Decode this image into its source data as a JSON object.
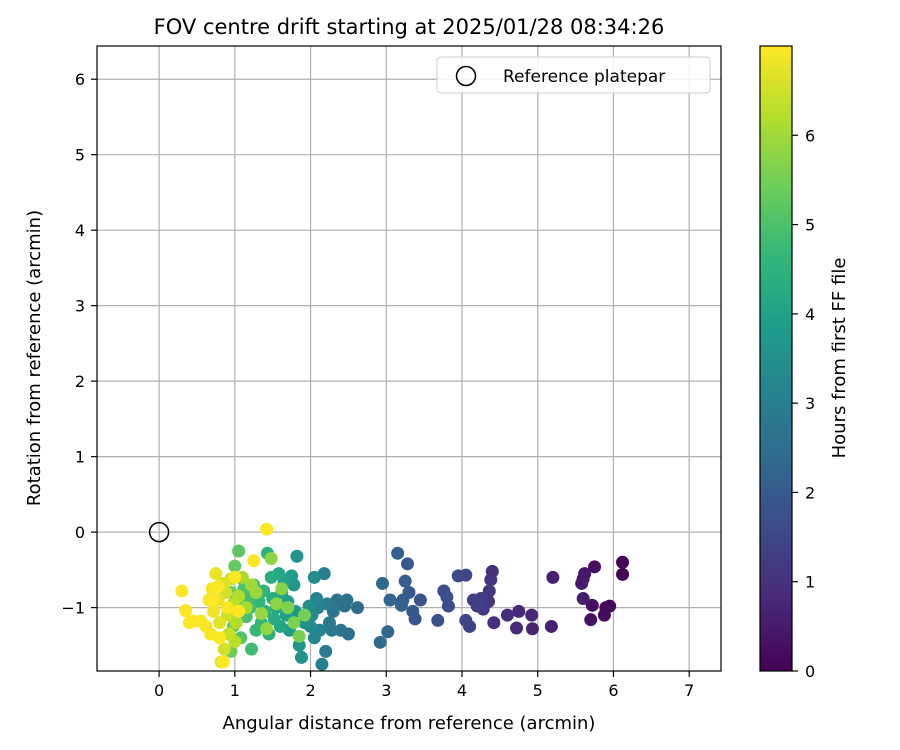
{
  "chart_data": {
    "type": "scatter",
    "title": "FOV centre drift starting at 2025/01/28 08:34:26",
    "xlabel": "Angular distance from reference (arcmin)",
    "ylabel": "Rotation from reference (arcmin)",
    "xlim": [
      -0.82,
      7.42
    ],
    "ylim": [
      -1.84,
      6.44
    ],
    "xticks": [
      0,
      1,
      2,
      3,
      4,
      5,
      6,
      7
    ],
    "yticks": [
      -1,
      0,
      1,
      2,
      3,
      4,
      5,
      6
    ],
    "xtick_labels": [
      "0",
      "1",
      "2",
      "3",
      "4",
      "5",
      "6",
      "7"
    ],
    "ytick_labels": [
      "−1",
      "0",
      "1",
      "2",
      "3",
      "4",
      "5",
      "6"
    ],
    "grid": true,
    "legend": {
      "location": "upper-right",
      "entries": [
        "Reference platepar"
      ]
    },
    "reference": {
      "x": 0,
      "y": 0,
      "marker": "open-circle"
    },
    "colorbar": {
      "label": "Hours from first FF file",
      "range": [
        0,
        7
      ],
      "ticks": [
        0,
        1,
        2,
        3,
        4,
        5,
        6
      ],
      "tick_labels": [
        "0",
        "1",
        "2",
        "3",
        "4",
        "5",
        "6"
      ],
      "colormap": "viridis"
    },
    "colormap_stops": [
      "#440154",
      "#482878",
      "#3e4989",
      "#31688e",
      "#26828e",
      "#1f9e89",
      "#35b779",
      "#6ece58",
      "#b5de2b",
      "#fde725"
    ],
    "points": [
      [
        6.12,
        -0.4,
        0.02
      ],
      [
        6.12,
        -0.56,
        0.05
      ],
      [
        5.95,
        -0.98,
        0.1
      ],
      [
        5.9,
        -1.0,
        0.15
      ],
      [
        5.88,
        -1.1,
        0.2
      ],
      [
        5.75,
        -0.46,
        0.25
      ],
      [
        5.72,
        -0.97,
        0.3
      ],
      [
        5.7,
        -1.16,
        0.35
      ],
      [
        5.62,
        -0.55,
        0.4
      ],
      [
        5.6,
        -0.62,
        0.45
      ],
      [
        5.58,
        -0.68,
        0.5
      ],
      [
        5.6,
        -0.88,
        0.55
      ],
      [
        5.2,
        -0.6,
        0.6
      ],
      [
        5.18,
        -1.25,
        0.65
      ],
      [
        4.93,
        -1.28,
        0.7
      ],
      [
        4.92,
        -1.1,
        0.75
      ],
      [
        4.75,
        -1.05,
        0.8
      ],
      [
        4.72,
        -1.27,
        0.85
      ],
      [
        4.6,
        -1.1,
        0.9
      ],
      [
        4.42,
        -1.2,
        0.95
      ],
      [
        4.4,
        -0.52,
        1.0
      ],
      [
        4.38,
        -0.63,
        1.05
      ],
      [
        4.36,
        -0.78,
        1.1
      ],
      [
        4.35,
        -0.92,
        1.15
      ],
      [
        4.28,
        -1.02,
        1.2
      ],
      [
        4.25,
        -0.88,
        1.25
      ],
      [
        4.2,
        -0.98,
        1.3
      ],
      [
        4.15,
        -0.9,
        1.35
      ],
      [
        4.1,
        -1.25,
        1.4
      ],
      [
        4.05,
        -1.17,
        1.45
      ],
      [
        4.05,
        -0.57,
        1.5
      ],
      [
        3.95,
        -0.58,
        1.55
      ],
      [
        3.82,
        -0.98,
        1.6
      ],
      [
        3.76,
        -0.78,
        1.65
      ],
      [
        3.8,
        -0.86,
        1.7
      ],
      [
        3.68,
        -1.17,
        1.75
      ],
      [
        3.45,
        -0.9,
        1.8
      ],
      [
        3.38,
        -1.15,
        1.85
      ],
      [
        3.35,
        -1.05,
        1.9
      ],
      [
        3.3,
        -0.8,
        1.95
      ],
      [
        3.28,
        -0.42,
        2.0
      ],
      [
        3.25,
        -0.65,
        2.05
      ],
      [
        3.22,
        -0.9,
        2.1
      ],
      [
        3.15,
        -0.28,
        2.15
      ],
      [
        3.2,
        -0.97,
        2.2
      ],
      [
        3.05,
        -0.9,
        2.25
      ],
      [
        3.02,
        -1.32,
        2.3
      ],
      [
        2.95,
        -0.68,
        2.35
      ],
      [
        2.92,
        -1.46,
        2.4
      ],
      [
        2.62,
        -1.0,
        2.45
      ],
      [
        2.5,
        -1.35,
        2.5
      ],
      [
        2.45,
        -0.98,
        2.55
      ],
      [
        2.48,
        -0.9,
        2.6
      ],
      [
        2.4,
        -1.3,
        2.65
      ],
      [
        2.35,
        -0.9,
        2.7
      ],
      [
        2.3,
        -1.05,
        2.75
      ],
      [
        2.28,
        -1.3,
        2.8
      ],
      [
        2.25,
        -1.2,
        2.85
      ],
      [
        2.22,
        -0.95,
        2.9
      ],
      [
        2.2,
        -1.58,
        2.95
      ],
      [
        2.18,
        -0.55,
        3.0
      ],
      [
        2.15,
        -1.75,
        3.05
      ],
      [
        2.12,
        -1.3,
        3.1
      ],
      [
        2.1,
        -1.0,
        3.15
      ],
      [
        2.05,
        -1.4,
        3.2
      ],
      [
        2.08,
        -0.88,
        3.25
      ],
      [
        2.02,
        -1.1,
        3.3
      ],
      [
        2.0,
        -1.25,
        3.35
      ],
      [
        2.05,
        -0.6,
        3.4
      ],
      [
        1.98,
        -0.98,
        3.45
      ],
      [
        1.92,
        -1.2,
        3.5
      ],
      [
        1.88,
        -1.66,
        3.55
      ],
      [
        1.85,
        -1.5,
        3.6
      ],
      [
        1.82,
        -0.32,
        3.65
      ],
      [
        1.8,
        -1.05,
        3.7
      ],
      [
        1.78,
        -0.7,
        3.75
      ],
      [
        1.75,
        -0.58,
        3.8
      ],
      [
        1.72,
        -1.3,
        3.85
      ],
      [
        1.7,
        -0.92,
        3.9
      ],
      [
        1.68,
        -1.1,
        3.95
      ],
      [
        1.65,
        -0.65,
        4.0
      ],
      [
        1.62,
        -0.8,
        4.05
      ],
      [
        1.6,
        -1.25,
        4.1
      ],
      [
        1.58,
        -0.55,
        4.15
      ],
      [
        1.55,
        -1.0,
        4.2
      ],
      [
        1.52,
        -1.15,
        4.25
      ],
      [
        1.5,
        -0.88,
        4.3
      ],
      [
        1.48,
        -0.6,
        4.35
      ],
      [
        1.45,
        -1.35,
        4.4
      ],
      [
        1.43,
        -0.28,
        4.45
      ],
      [
        1.4,
        -1.05,
        4.5
      ],
      [
        1.38,
        -0.78,
        4.55
      ],
      [
        1.35,
        -1.2,
        4.6
      ],
      [
        1.32,
        -0.92,
        4.65
      ],
      [
        1.28,
        -1.3,
        4.7
      ],
      [
        1.25,
        -0.7,
        4.75
      ],
      [
        1.22,
        -1.55,
        4.8
      ],
      [
        1.2,
        -1.0,
        4.85
      ],
      [
        1.18,
        -0.85,
        4.9
      ],
      [
        1.15,
        -1.12,
        4.95
      ],
      [
        1.12,
        -0.75,
        5.0
      ],
      [
        1.1,
        -0.62,
        5.05
      ],
      [
        1.08,
        -1.4,
        5.1
      ],
      [
        1.05,
        -0.9,
        5.15
      ],
      [
        1.05,
        -0.25,
        5.2
      ],
      [
        1.02,
        -1.05,
        5.25
      ],
      [
        1.0,
        -0.45,
        5.3
      ],
      [
        0.98,
        -1.25,
        5.35
      ],
      [
        0.95,
        -0.8,
        5.4
      ],
      [
        0.95,
        -1.58,
        5.45
      ],
      [
        1.92,
        -1.1,
        5.5
      ],
      [
        1.85,
        -1.38,
        5.55
      ],
      [
        1.78,
        -1.2,
        5.6
      ],
      [
        1.7,
        -1.0,
        5.65
      ],
      [
        1.62,
        -0.75,
        5.7
      ],
      [
        1.55,
        -0.95,
        5.75
      ],
      [
        1.48,
        -0.35,
        5.8
      ],
      [
        1.42,
        -1.28,
        5.85
      ],
      [
        1.35,
        -1.08,
        5.9
      ],
      [
        1.28,
        -0.8,
        5.95
      ],
      [
        1.22,
        -0.7,
        6.0
      ],
      [
        1.15,
        -1.0,
        6.05
      ],
      [
        1.1,
        -0.6,
        6.1
      ],
      [
        1.05,
        -0.85,
        6.15
      ],
      [
        1.02,
        -1.2,
        6.2
      ],
      [
        1.0,
        -1.45,
        6.25
      ],
      [
        0.98,
        -0.95,
        6.3
      ],
      [
        0.95,
        -0.62,
        6.35
      ],
      [
        0.92,
        -1.35,
        6.4
      ],
      [
        0.9,
        -1.1,
        6.45
      ],
      [
        0.88,
        -0.8,
        6.5
      ],
      [
        0.86,
        -1.55,
        6.55
      ],
      [
        0.85,
        -0.68,
        6.6
      ],
      [
        0.82,
        -1.72,
        6.65
      ],
      [
        0.8,
        -1.2,
        6.7
      ],
      [
        0.78,
        -0.9,
        6.75
      ],
      [
        0.75,
        -0.55,
        6.8
      ],
      [
        0.72,
        -1.05,
        6.85
      ],
      [
        0.7,
        -0.75,
        6.9
      ],
      [
        0.68,
        -1.35,
        6.92
      ],
      [
        0.66,
        -0.9,
        6.94
      ],
      [
        0.62,
        -1.25,
        6.95
      ],
      [
        0.55,
        -1.18,
        6.96
      ],
      [
        0.45,
        -1.18,
        6.97
      ],
      [
        0.4,
        -1.2,
        6.97
      ],
      [
        0.35,
        -1.04,
        6.98
      ],
      [
        0.3,
        -0.78,
        6.98
      ],
      [
        1.25,
        -0.38,
        6.99
      ],
      [
        1.42,
        0.04,
        6.99
      ],
      [
        1.05,
        -1.05,
        6.99
      ],
      [
        0.85,
        -1.72,
        6.99
      ],
      [
        0.78,
        -0.72,
        6.99
      ],
      [
        1.0,
        -0.6,
        6.99
      ],
      [
        0.9,
        -1.0,
        6.99
      ],
      [
        0.8,
        -1.4,
        6.99
      ],
      [
        0.72,
        -0.9,
        6.99
      ]
    ]
  }
}
